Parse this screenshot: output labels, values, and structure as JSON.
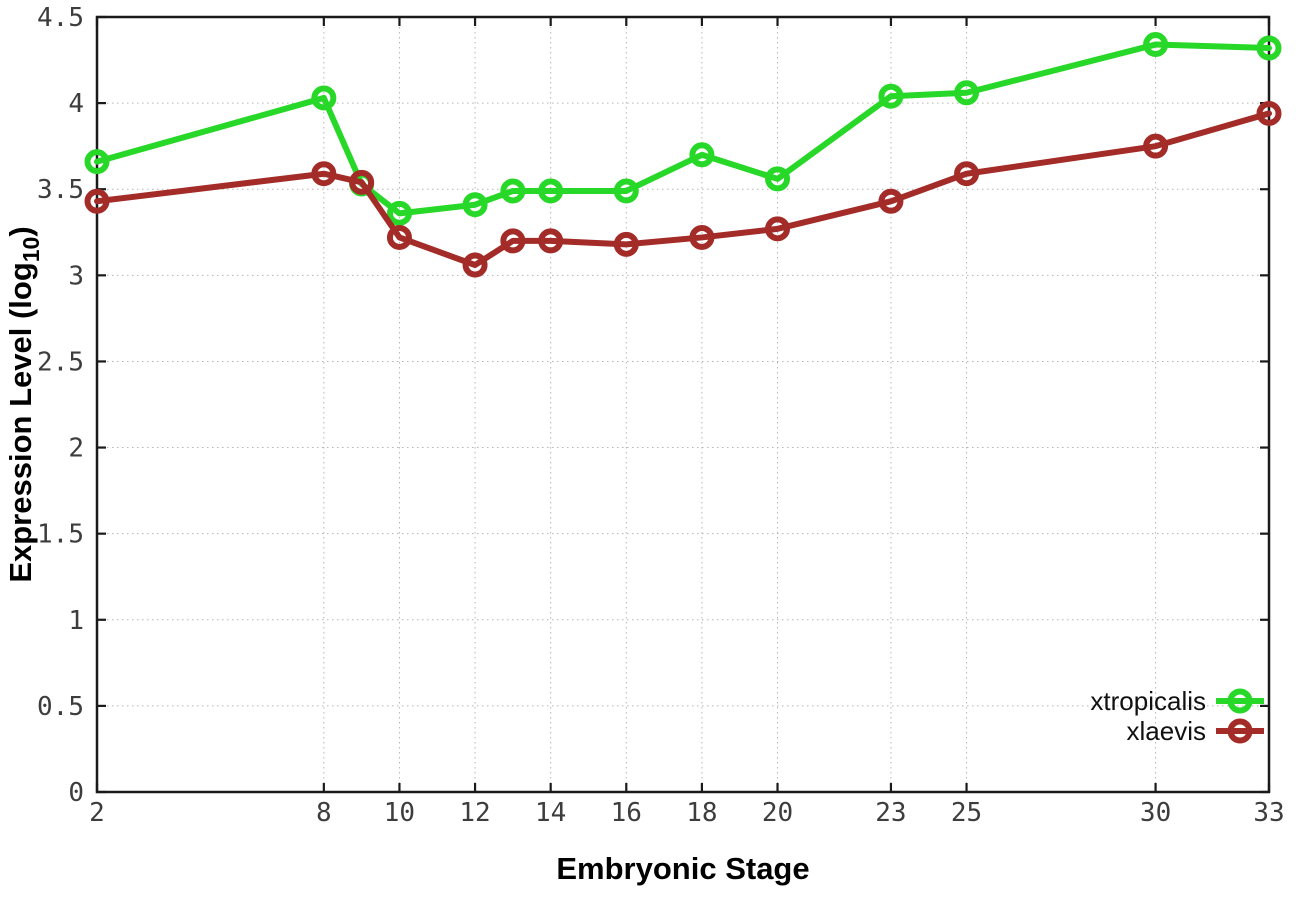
{
  "chart_data": {
    "type": "line",
    "title": "",
    "xlabel": "Embryonic Stage",
    "ylabel": "Expression Level (log10)",
    "ylabel_parts": {
      "base": "Expression Level (log",
      "subscript": "10",
      "close": ")"
    },
    "x": [
      2,
      8,
      9,
      10,
      12,
      13,
      14,
      16,
      18,
      20,
      23,
      25,
      30,
      33
    ],
    "series": [
      {
        "name": "xtropicalis",
        "color": "#28d828",
        "values": [
          3.66,
          4.03,
          3.53,
          3.36,
          3.41,
          3.49,
          3.49,
          3.49,
          3.7,
          3.56,
          4.04,
          4.06,
          4.34,
          4.32
        ]
      },
      {
        "name": "xlaevis",
        "color": "#a32c28",
        "values": [
          3.43,
          3.59,
          3.54,
          3.22,
          3.06,
          3.2,
          3.2,
          3.18,
          3.22,
          3.27,
          3.43,
          3.59,
          3.75,
          3.94
        ]
      }
    ],
    "xlim": [
      2,
      33
    ],
    "ylim": [
      0,
      4.5
    ],
    "x_tick_values": [
      2,
      8,
      10,
      12,
      14,
      16,
      18,
      20,
      23,
      25,
      30,
      33
    ],
    "x_tick_labels": [
      "2",
      "8",
      "10",
      "12",
      "14",
      "16",
      "18",
      "20",
      "23",
      "25",
      "30",
      "33"
    ],
    "y_tick_values": [
      0,
      0.5,
      1,
      1.5,
      2,
      2.5,
      3,
      3.5,
      4,
      4.5
    ],
    "y_tick_labels": [
      "0",
      "0.5",
      "1",
      "1.5",
      "2",
      "2.5",
      "3",
      "3.5",
      "4",
      "4.5"
    ],
    "grid": true,
    "legend_position": "bottom-right",
    "legend_entries": [
      "xtropicalis",
      "xlaevis"
    ]
  },
  "style_colors": {
    "background": "#ffffff",
    "border": "#1a1a1a",
    "grid": "#b5b5b5",
    "tick_text": "#3d3d3d",
    "axis_text": "#000000"
  }
}
